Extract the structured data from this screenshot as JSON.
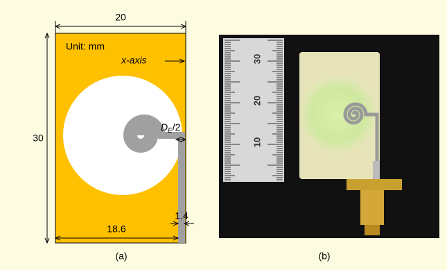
{
  "figure_a": {
    "width_label": "20",
    "height_label": "30",
    "unit": "Unit: mm",
    "axis_label": "x-axis",
    "gap_label": {
      "symbol": "D",
      "subscript": "E",
      "suffix": "/2"
    },
    "feed_width_label": "1.4",
    "ground_width_label": "18.6",
    "caption": "(a)"
  },
  "figure_b": {
    "ruler_labels": [
      "30",
      "20",
      "10"
    ],
    "caption": "(b)"
  }
}
